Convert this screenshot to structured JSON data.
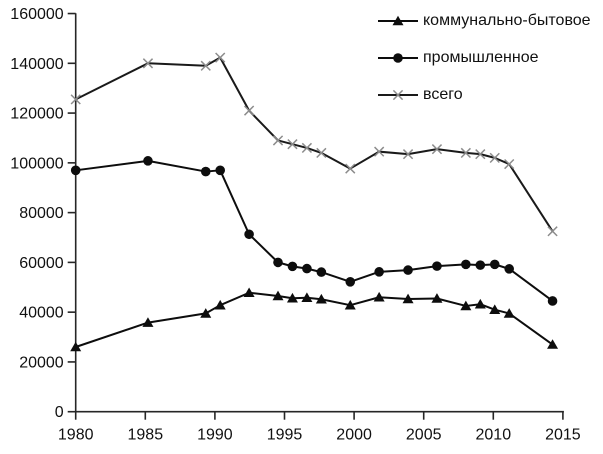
{
  "chart_data": {
    "type": "line",
    "title": "",
    "xlabel": "",
    "ylabel": "",
    "x": [
      1980,
      1985,
      1989,
      1990,
      1992,
      1994,
      1995,
      1996,
      1997,
      1999,
      2001,
      2003,
      2005,
      2007,
      2008,
      2009,
      2010,
      2013
    ],
    "series": [
      {
        "name": "коммунально-бытовое",
        "marker": "triangle",
        "line_color": "#0d0d0d",
        "marker_color": "#0d0d0d",
        "values": [
          26000,
          35800,
          39500,
          42800,
          47800,
          46500,
          45600,
          45800,
          45200,
          42800,
          46000,
          45300,
          45500,
          42500,
          43200,
          41000,
          39500,
          27000
        ]
      },
      {
        "name": "промышленное",
        "marker": "circle",
        "line_color": "#0d0d0d",
        "marker_color": "#0d0d0d",
        "values": [
          97000,
          100800,
          96500,
          97000,
          71300,
          60000,
          58400,
          57500,
          56100,
          52200,
          56200,
          56900,
          58500,
          59200,
          58900,
          59200,
          57400,
          44500
        ]
      },
      {
        "name": "всего",
        "marker": "x",
        "line_color": "#1a1a1a",
        "marker_color": "#8c8c8c",
        "values": [
          125500,
          140000,
          139000,
          142300,
          121000,
          109000,
          107500,
          106000,
          104000,
          97700,
          104500,
          103500,
          105500,
          104000,
          103500,
          102000,
          99500,
          72500
        ]
      }
    ],
    "xlim": [
      1980,
      2015
    ],
    "ylim": [
      0,
      160000
    ],
    "x_ticks": [
      1980,
      1985,
      1990,
      1995,
      2000,
      2005,
      2010,
      2015
    ],
    "y_ticks": [
      0,
      20000,
      40000,
      60000,
      80000,
      100000,
      120000,
      140000,
      160000
    ],
    "legend_position": "top-right",
    "grid": false,
    "background": "#ffffff",
    "axis_color": "#262626"
  }
}
